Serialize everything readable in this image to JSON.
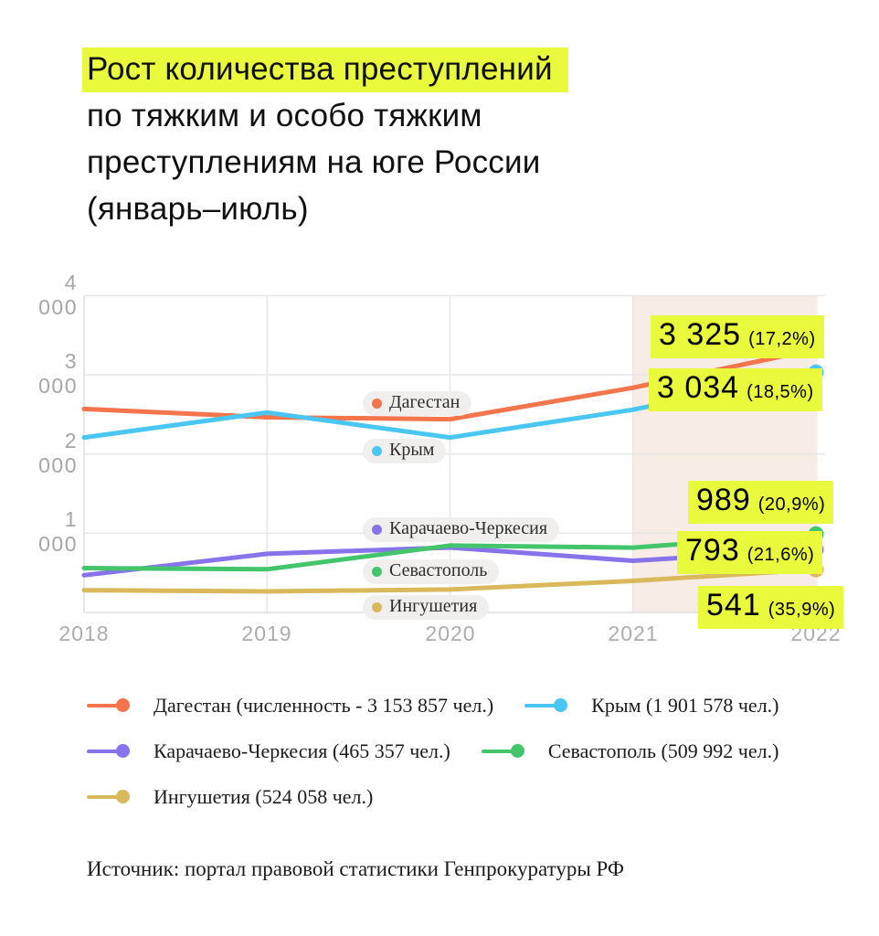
{
  "title": {
    "line1": "Рост количества преступлений",
    "line2": "по тяжким и особо тяжким",
    "line3": "преступлениям на юге России",
    "line4": "(январь–июль)"
  },
  "colors": {
    "highlight": "#E9F93B",
    "region": "#F8ECE7",
    "grid": "#E7E7E7",
    "axis_text": "#A6A6A6"
  },
  "chart_data": {
    "type": "line",
    "title": "Рост количества преступлений по тяжким и особо тяжким преступлениям на юге России (январь–июль)",
    "x": [
      2018,
      2019,
      2020,
      2021,
      2022
    ],
    "xticks": [
      "2018",
      "2019",
      "2020",
      "2021",
      "2022"
    ],
    "ylim": [
      0,
      4000
    ],
    "yticks": [
      "1 000",
      "2 000",
      "3 000",
      "4 000"
    ],
    "grid": true,
    "highlight_region": {
      "from": 2021,
      "to": 2022
    },
    "series": [
      {
        "key": "dagestan",
        "name": "Дагестан",
        "color": "#F4744B",
        "values": [
          2570,
          2465,
          2440,
          2837,
          3325
        ],
        "end_label": "3 325",
        "end_pct": "(17,2%)"
      },
      {
        "key": "krym",
        "name": "Крым",
        "color": "#49C7F2",
        "values": [
          2210,
          2525,
          2210,
          2560,
          3034
        ],
        "end_label": "3 034",
        "end_pct": "(18,5%)"
      },
      {
        "key": "kch",
        "name": "Карачаево-Черкесия",
        "color": "#8873EA",
        "values": [
          470,
          740,
          820,
          652,
          793
        ],
        "end_label": "793",
        "end_pct": "(21,6%)"
      },
      {
        "key": "sevastopol",
        "name": "Севастополь",
        "color": "#44C56C",
        "values": [
          560,
          545,
          845,
          818,
          989
        ],
        "end_label": "989",
        "end_pct": "(20,9%)"
      },
      {
        "key": "ingushetia",
        "name": "Ингушетия",
        "color": "#D9B95C",
        "values": [
          280,
          265,
          290,
          398,
          541
        ],
        "end_label": "541",
        "end_pct": "(35,9%)"
      }
    ]
  },
  "legend": [
    {
      "key": "dagestan",
      "label": "Дагестан (численность - 3 153 857 чел.)",
      "color": "#F4744B"
    },
    {
      "key": "krym",
      "label": "Крым (1 901 578 чел.)",
      "color": "#49C7F2"
    },
    {
      "key": "kch",
      "label": "Карачаево-Черкесия (465 357 чел.)",
      "color": "#8873EA"
    },
    {
      "key": "sevastopol",
      "label": "Севастополь (509 992 чел.)",
      "color": "#44C56C"
    },
    {
      "key": "ingushetia",
      "label": "Ингушетия (524 058 чел.)",
      "color": "#D9B95C"
    }
  ],
  "source": "Источник: портал правовой статистики Генпрокуратуры РФ"
}
